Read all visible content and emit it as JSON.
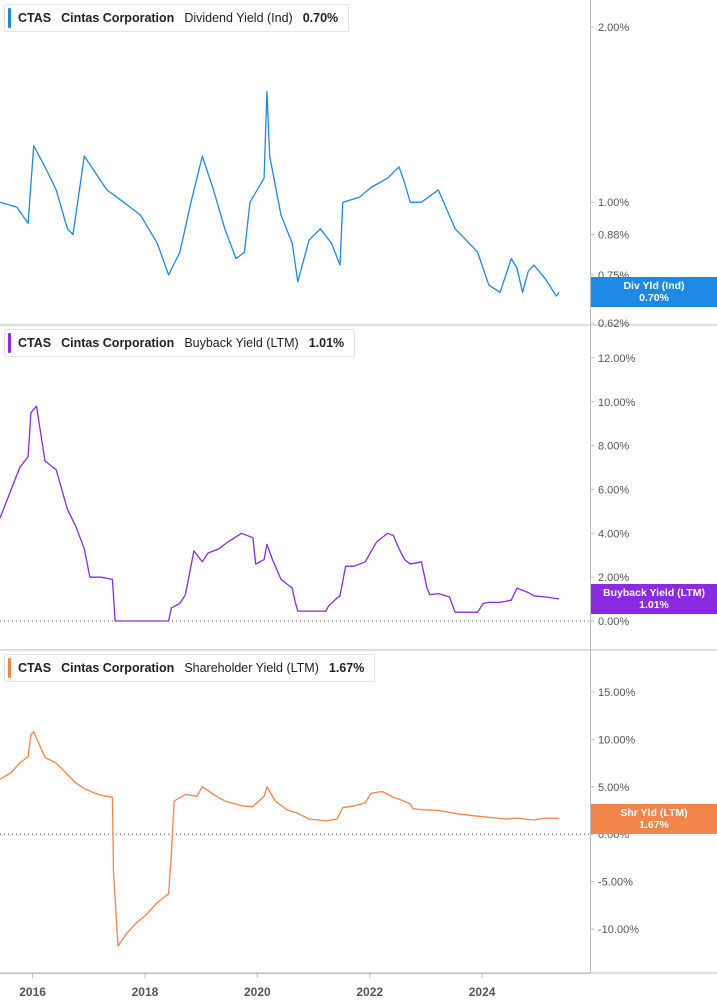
{
  "ticker": "CTAS",
  "company": "Cintas Corporation",
  "x_axis": {
    "labels": [
      "2016",
      "2018",
      "2020",
      "2022",
      "2024"
    ],
    "label_years": [
      2016.08,
      2018.08,
      2020.08,
      2022.08,
      2024.08
    ]
  },
  "colors": {
    "dividend": "#1e88e5",
    "buyback": "#8a2be2",
    "shareholder": "#f2854a",
    "axis_text": "#555555",
    "grid_lines": "#bbbbbb"
  },
  "panels": [
    {
      "metric": "Dividend Yield (Ind)",
      "value": "0.70%",
      "tag_line1": "Div Yld (Ind)",
      "tag_line2": "0.70%",
      "y_ticks": [
        {
          "v": 2.0,
          "label": "2.00%"
        },
        {
          "v": 1.0,
          "label": "1.00%"
        },
        {
          "v": 0.88,
          "label": "0.88%"
        },
        {
          "v": 0.75,
          "label": "0.75%"
        },
        {
          "v": 0.62,
          "label": "0.62%"
        }
      ],
      "show_zero_line": false
    },
    {
      "metric": "Buyback Yield (LTM)",
      "value": "1.01%",
      "tag_line1": "Buyback Yield (LTM)",
      "tag_line2": "1.01%",
      "y_ticks": [
        {
          "v": 12,
          "label": "12.00%"
        },
        {
          "v": 10,
          "label": "10.00%"
        },
        {
          "v": 8,
          "label": "8.00%"
        },
        {
          "v": 6,
          "label": "6.00%"
        },
        {
          "v": 4,
          "label": "4.00%"
        },
        {
          "v": 2,
          "label": "2.00%"
        },
        {
          "v": 0,
          "label": "0.00%"
        }
      ],
      "show_zero_line": true
    },
    {
      "metric": "Shareholder Yield (LTM)",
      "value": "1.67%",
      "tag_line1": "Shr Yld (LTM)",
      "tag_line2": "1.67%",
      "y_ticks": [
        {
          "v": 15,
          "label": "15.00%"
        },
        {
          "v": 10,
          "label": "10.00%"
        },
        {
          "v": 5,
          "label": "5.00%"
        },
        {
          "v": 0,
          "label": "0.00%"
        },
        {
          "v": -5,
          "label": "-5.00%"
        },
        {
          "v": -10,
          "label": "-10.00%"
        }
      ],
      "show_zero_line": true
    }
  ],
  "chart_data": [
    {
      "type": "line",
      "ylabel": "",
      "scale": "log",
      "xlim": [
        2015.5,
        2026.0
      ],
      "ylim": [
        0.62,
        2.1
      ],
      "series": [
        {
          "name": "Dividend Yield (Ind)",
          "color": "#1e88e5",
          "x": [
            2015.5,
            2015.8,
            2016.0,
            2016.1,
            2016.3,
            2016.5,
            2016.7,
            2016.8,
            2017.0,
            2017.4,
            2017.7,
            2018.0,
            2018.3,
            2018.5,
            2018.7,
            2018.9,
            2019.1,
            2019.3,
            2019.5,
            2019.7,
            2019.85,
            2019.95,
            2020.2,
            2020.25,
            2020.3,
            2020.5,
            2020.7,
            2020.8,
            2021.0,
            2021.2,
            2021.4,
            2021.55,
            2021.6,
            2021.9,
            2022.1,
            2022.4,
            2022.6,
            2022.7,
            2022.8,
            2023.0,
            2023.3,
            2023.6,
            2023.8,
            2024.0,
            2024.2,
            2024.4,
            2024.6,
            2024.7,
            2024.8,
            2024.9,
            2025.0,
            2025.2,
            2025.4,
            2025.45
          ],
          "y": [
            1.0,
            0.98,
            0.92,
            1.25,
            1.15,
            1.05,
            0.9,
            0.88,
            1.2,
            1.05,
            1.0,
            0.95,
            0.85,
            0.75,
            0.82,
            1.0,
            1.2,
            1.05,
            0.9,
            0.8,
            0.82,
            1.0,
            1.1,
            1.55,
            1.2,
            0.95,
            0.85,
            0.73,
            0.86,
            0.9,
            0.85,
            0.78,
            1.0,
            1.02,
            1.06,
            1.1,
            1.15,
            1.08,
            1.0,
            1.0,
            1.05,
            0.9,
            0.86,
            0.82,
            0.72,
            0.7,
            0.8,
            0.77,
            0.7,
            0.76,
            0.78,
            0.74,
            0.69,
            0.7
          ]
        }
      ]
    },
    {
      "type": "line",
      "ylabel": "",
      "xlim": [
        2015.5,
        2026.0
      ],
      "ylim": [
        -0.4,
        12.6
      ],
      "series": [
        {
          "name": "Buyback Yield (LTM)",
          "color": "#8a2be2",
          "x": [
            2015.5,
            2015.7,
            2015.85,
            2016.0,
            2016.05,
            2016.15,
            2016.3,
            2016.5,
            2016.7,
            2016.85,
            2017.0,
            2017.1,
            2017.3,
            2017.5,
            2017.55,
            2017.6,
            2018.0,
            2018.5,
            2018.55,
            2018.7,
            2018.8,
            2018.95,
            2019.1,
            2019.2,
            2019.4,
            2019.55,
            2019.8,
            2020.0,
            2020.05,
            2020.2,
            2020.25,
            2020.35,
            2020.5,
            2020.7,
            2020.75,
            2020.8,
            2021.0,
            2021.3,
            2021.35,
            2021.5,
            2021.55,
            2021.65,
            2021.8,
            2022.0,
            2022.2,
            2022.4,
            2022.5,
            2022.6,
            2022.7,
            2022.8,
            2023.0,
            2023.1,
            2023.15,
            2023.3,
            2023.5,
            2023.6,
            2023.7,
            2024.0,
            2024.1,
            2024.2,
            2024.4,
            2024.6,
            2024.7,
            2024.9,
            2025.0,
            2025.2,
            2025.45
          ],
          "y": [
            4.7,
            6.0,
            7.0,
            7.5,
            9.5,
            9.8,
            7.3,
            6.9,
            5.1,
            4.3,
            3.3,
            2.0,
            2.0,
            1.9,
            0.0,
            0.0,
            0.0,
            0.0,
            0.6,
            0.8,
            1.2,
            3.2,
            2.7,
            3.1,
            3.3,
            3.6,
            4.0,
            3.8,
            2.6,
            2.8,
            3.5,
            2.8,
            1.9,
            1.5,
            0.9,
            0.45,
            0.45,
            0.45,
            0.7,
            1.05,
            1.15,
            2.5,
            2.5,
            2.7,
            3.6,
            4.0,
            3.9,
            3.3,
            2.8,
            2.6,
            2.7,
            1.5,
            1.2,
            1.25,
            1.1,
            0.4,
            0.4,
            0.4,
            0.8,
            0.85,
            0.85,
            0.95,
            1.5,
            1.3,
            1.15,
            1.1,
            1.01
          ]
        }
      ]
    },
    {
      "type": "line",
      "ylabel": "",
      "xlim": [
        2015.5,
        2026.0
      ],
      "ylim": [
        -12.5,
        17.5
      ],
      "series": [
        {
          "name": "Shareholder Yield (LTM)",
          "color": "#f2854a",
          "x": [
            2015.5,
            2015.7,
            2015.85,
            2016.0,
            2016.05,
            2016.1,
            2016.3,
            2016.5,
            2016.7,
            2016.85,
            2017.0,
            2017.2,
            2017.3,
            2017.5,
            2017.52,
            2017.6,
            2017.75,
            2017.9,
            2018.1,
            2018.3,
            2018.5,
            2018.55,
            2018.6,
            2018.8,
            2019.0,
            2019.1,
            2019.3,
            2019.5,
            2019.8,
            2020.0,
            2020.05,
            2020.2,
            2020.25,
            2020.4,
            2020.6,
            2020.8,
            2021.0,
            2021.3,
            2021.5,
            2021.6,
            2021.8,
            2022.0,
            2022.1,
            2022.3,
            2022.5,
            2022.6,
            2022.8,
            2022.85,
            2023.0,
            2023.3,
            2023.5,
            2023.7,
            2024.0,
            2024.5,
            2024.7,
            2025.0,
            2025.2,
            2025.45
          ],
          "y": [
            5.8,
            6.5,
            7.5,
            8.2,
            10.5,
            10.8,
            8.1,
            7.5,
            6.3,
            5.4,
            4.8,
            4.3,
            4.1,
            3.9,
            -4.0,
            -11.8,
            -10.5,
            -9.5,
            -8.5,
            -7.2,
            -6.3,
            -2.0,
            3.5,
            4.2,
            4.0,
            5.0,
            4.2,
            3.5,
            3.0,
            2.9,
            3.2,
            4.0,
            5.0,
            3.5,
            2.6,
            2.2,
            1.6,
            1.4,
            1.6,
            2.8,
            3.0,
            3.3,
            4.3,
            4.5,
            3.9,
            3.7,
            3.2,
            2.7,
            2.6,
            2.5,
            2.3,
            2.1,
            1.9,
            1.6,
            1.7,
            1.5,
            1.7,
            1.67
          ]
        }
      ]
    }
  ]
}
